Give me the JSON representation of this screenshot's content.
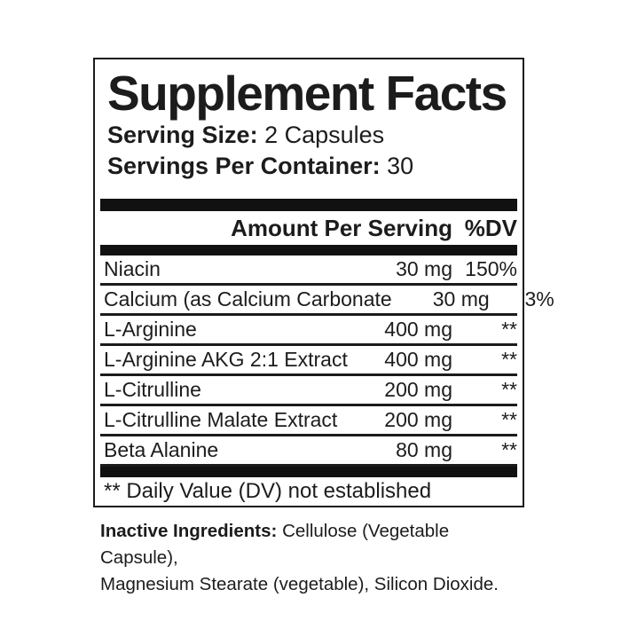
{
  "label": {
    "title": "Supplement Facts",
    "serving_size": {
      "label": "Serving Size:",
      "value": "2 Capsules"
    },
    "servings_per_container": {
      "label": "Servings Per Container:",
      "value": "30"
    },
    "table": {
      "header": {
        "amount": "Amount Per Serving",
        "dv": "%DV"
      },
      "rows": [
        {
          "name": "Niacin",
          "amount": "30 mg",
          "dv": "150%"
        },
        {
          "name": "Calcium (as Calcium Carbonate",
          "amount": "30 mg",
          "dv": "3%"
        },
        {
          "name": "L-Arginine",
          "amount": "400 mg",
          "dv": "**"
        },
        {
          "name": "L-Arginine AKG 2:1 Extract",
          "amount": "400 mg",
          "dv": "**"
        },
        {
          "name": "L-Citrulline",
          "amount": "200 mg",
          "dv": "**"
        },
        {
          "name": "L-Citrulline Malate Extract",
          "amount": "200 mg",
          "dv": "**"
        },
        {
          "name": "Beta Alanine",
          "amount": "80 mg",
          "dv": "**"
        }
      ],
      "footnote": "** Daily Value (DV) not established"
    },
    "inactive_ingredients": {
      "label": "Inactive Ingredients:",
      "line1": "Cellulose (Vegetable Capsule),",
      "line2": "Magnesium Stearate (vegetable), Silicon Dioxide."
    },
    "colors": {
      "text": "#1c1c1c",
      "background": "#ffffff",
      "rule": "#111111"
    }
  }
}
